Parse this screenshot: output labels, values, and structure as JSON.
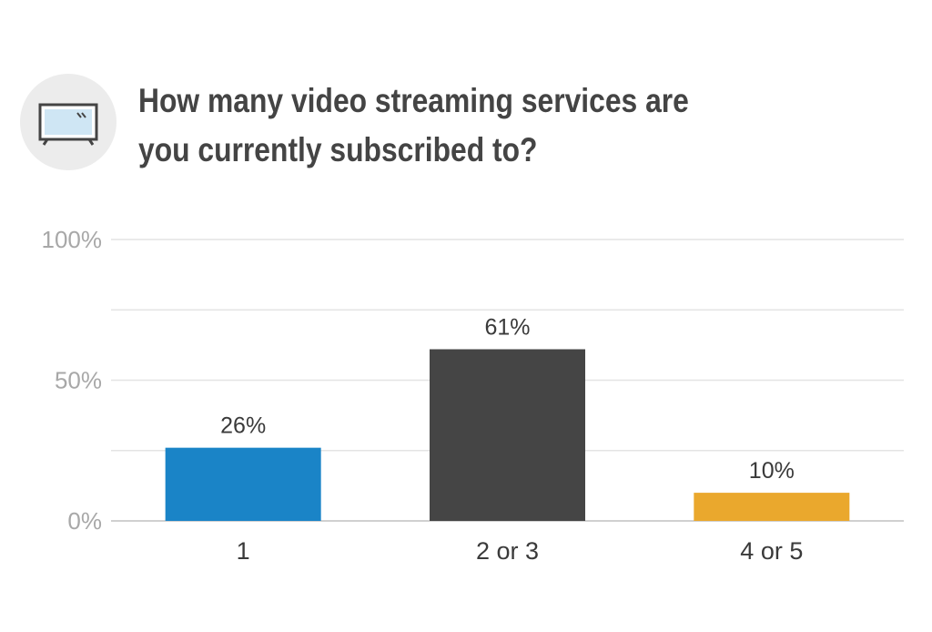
{
  "header": {
    "icon": "tv-icon",
    "title_line1": "How many video streaming services are",
    "title_line2": "you currently subscribed to?"
  },
  "chart_data": {
    "type": "bar",
    "categories": [
      "1",
      "2 or 3",
      "4 or 5"
    ],
    "values": [
      26,
      61,
      10
    ],
    "data_labels": [
      "26%",
      "61%",
      "10%"
    ],
    "colors": [
      "#1a84c7",
      "#454545",
      "#eaa82d"
    ],
    "ylim": [
      0,
      100
    ],
    "yticks": [
      {
        "value": 0,
        "label": "0%"
      },
      {
        "value": 50,
        "label": "50%"
      },
      {
        "value": 100,
        "label": "100%"
      }
    ],
    "gridlines": [
      0,
      25,
      50,
      75,
      100
    ],
    "grid": true,
    "legend": "none",
    "title": "How many video streaming services are you currently subscribed to?",
    "xlabel": "",
    "ylabel": ""
  }
}
